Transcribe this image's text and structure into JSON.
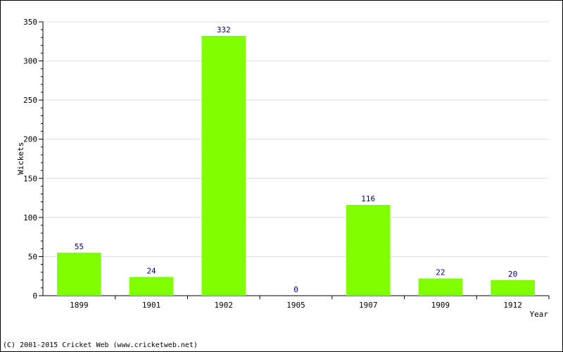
{
  "chart_data": {
    "type": "bar",
    "title": "",
    "xlabel": "Year",
    "ylabel": "Wickets",
    "categories": [
      "1899",
      "1901",
      "1902",
      "1905",
      "1907",
      "1909",
      "1912"
    ],
    "values": [
      55,
      24,
      332,
      0,
      116,
      22,
      20
    ],
    "ylim": [
      0,
      350
    ],
    "yticks": [
      0,
      50,
      100,
      150,
      200,
      250,
      300,
      350
    ],
    "grid": true,
    "bar_color": "#80ff00",
    "label_color": "#000080"
  },
  "footer": {
    "copyright": "(C) 2001-2015 Cricket Web (www.cricketweb.net)"
  }
}
